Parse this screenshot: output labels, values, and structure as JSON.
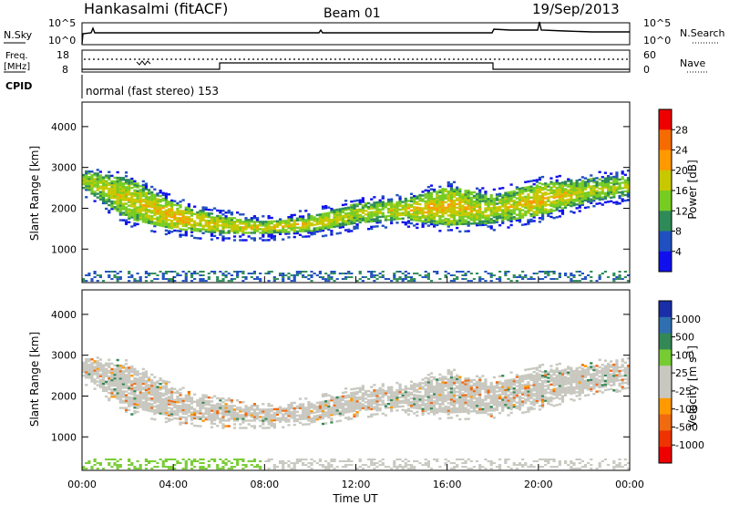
{
  "header": {
    "station": "Hankasalmi (fitACF)",
    "beam": "Beam 01",
    "date": "19/Sep/2013"
  },
  "nsky": {
    "label": "N.Sky",
    "right_label": "N.Search",
    "left_ticks": [
      "10^5",
      "10^0"
    ],
    "right_ticks": [
      "10^5",
      "10^0"
    ]
  },
  "freq": {
    "label_line1": "Freq.",
    "label_line2": "[MHz]",
    "right_label": "Nave",
    "left_ticks": [
      "18",
      "8"
    ],
    "right_ticks": [
      "60",
      "0"
    ]
  },
  "cpid": {
    "label": "CPID",
    "text": "normal (fast stereo) 153"
  },
  "chart_data": [
    {
      "type": "heatmap",
      "name": "Power",
      "ylabel": "Slant Range [km]",
      "yticks": [
        "4000",
        "3000",
        "2000",
        "1000"
      ],
      "ytick_values": [
        4000,
        3000,
        2000,
        1000
      ],
      "ylim": [
        180,
        4600
      ],
      "xlim": [
        0,
        24
      ],
      "colorbar": {
        "label": "Power [dB]",
        "ticks": [
          "28",
          "24",
          "20",
          "16",
          "12",
          "8",
          "4"
        ],
        "colors": [
          "#ee0000",
          "#f56b00",
          "#ff9900",
          "#c8c800",
          "#77cc22",
          "#2e8b57",
          "#2050c0",
          "#1010ee"
        ]
      },
      "echo_band_km": [
        {
          "t": 0,
          "lo": 2450,
          "hi": 2900,
          "power": 14
        },
        {
          "t": 2,
          "lo": 1700,
          "hi": 2700,
          "power": 16
        },
        {
          "t": 4,
          "lo": 1450,
          "hi": 2100,
          "power": 18
        },
        {
          "t": 6,
          "lo": 1350,
          "hi": 1800,
          "power": 16
        },
        {
          "t": 8,
          "lo": 1350,
          "hi": 1650,
          "power": 16
        },
        {
          "t": 10,
          "lo": 1400,
          "hi": 1800,
          "power": 16
        },
        {
          "t": 12,
          "lo": 1600,
          "hi": 2100,
          "power": 14
        },
        {
          "t": 14,
          "lo": 1700,
          "hi": 2200,
          "power": 16
        },
        {
          "t": 16,
          "lo": 1550,
          "hi": 2500,
          "power": 18
        },
        {
          "t": 18,
          "lo": 1600,
          "hi": 2300,
          "power": 14
        },
        {
          "t": 20,
          "lo": 1800,
          "hi": 2600,
          "power": 18
        },
        {
          "t": 22,
          "lo": 2100,
          "hi": 2700,
          "power": 14
        },
        {
          "t": 24,
          "lo": 2300,
          "hi": 2800,
          "power": 14
        }
      ]
    },
    {
      "type": "heatmap",
      "name": "Velocity",
      "xlabel": "Time UT",
      "ylabel": "Slant Range [km]",
      "yticks": [
        "4000",
        "3000",
        "2000",
        "1000"
      ],
      "ytick_values": [
        4000,
        3000,
        2000,
        1000
      ],
      "ylim": [
        180,
        4600
      ],
      "xlim": [
        0,
        24
      ],
      "xticks": [
        "00:00",
        "04:00",
        "08:00",
        "12:00",
        "16:00",
        "20:00",
        "00:00"
      ],
      "xtick_values": [
        0,
        4,
        8,
        12,
        16,
        20,
        24
      ],
      "colorbar": {
        "label": "Velocity [m s",
        "label_sup": "-1",
        "label_end": "]",
        "ticks": [
          "1000",
          "500",
          "100",
          "25",
          "-25",
          "-100",
          "-500",
          "-1000"
        ],
        "colors": [
          "#1a2ea8",
          "#2f6fb0",
          "#338855",
          "#77cc33",
          "#c8c8c0",
          "#c8c8c0",
          "#ff9900",
          "#f06a10",
          "#ee3300",
          "#ee0000"
        ]
      }
    }
  ]
}
